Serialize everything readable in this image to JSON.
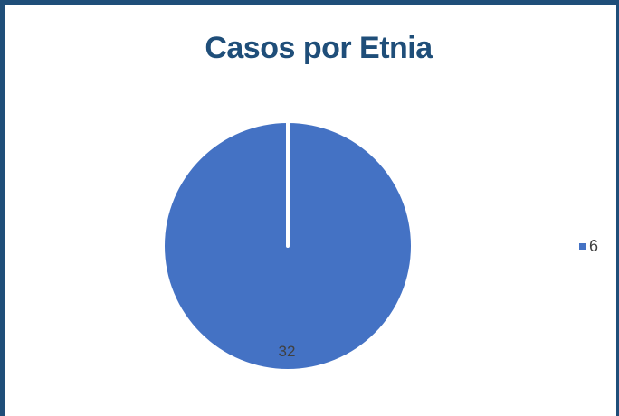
{
  "chart_data": {
    "type": "pie",
    "title": "Casos por Etnia",
    "slices": [
      {
        "label": "6",
        "value": 32,
        "data_label": "32"
      },
      {
        "label": "",
        "value": 0
      }
    ],
    "legend": {
      "position": "right",
      "entries": [
        "6"
      ]
    },
    "colors": {
      "slice": "#4472c4",
      "title": "#1f4e79",
      "border": "#1f4e79",
      "separator": "#ffffff"
    }
  }
}
